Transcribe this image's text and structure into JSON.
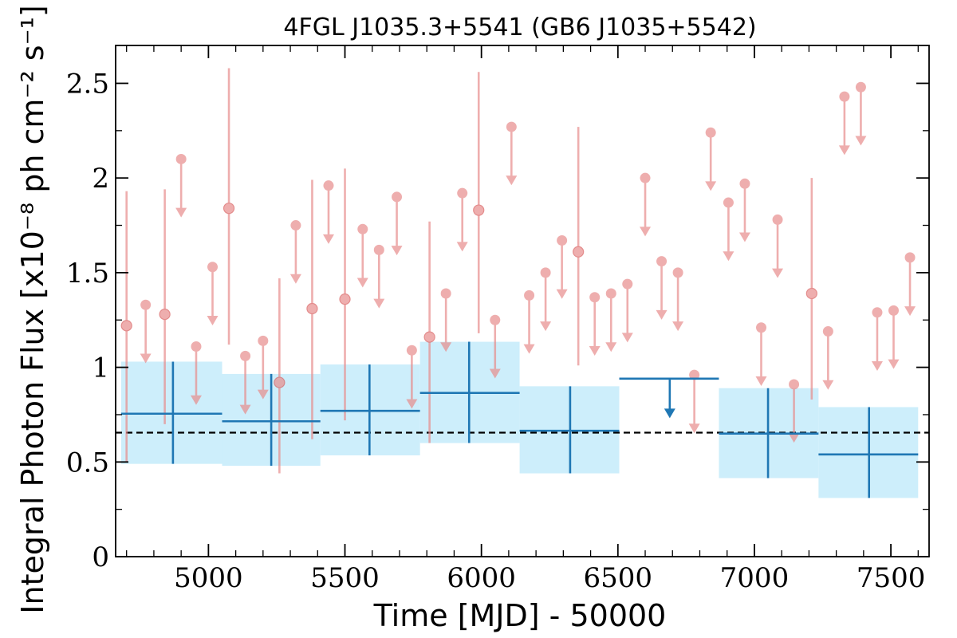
{
  "chart_data": {
    "type": "scatter",
    "title": "4FGL J1035.3+5541 (GB6 J1035+5542)",
    "xlabel": "Time [MJD] - 50000",
    "ylabel": "Integral Photon Flux [x10⁻⁸ ph cm⁻² s⁻¹]",
    "xlim": [
      4660,
      7640
    ],
    "ylim": [
      0,
      2.7
    ],
    "x_ticks": [
      5000,
      5500,
      6000,
      6500,
      7000,
      7500
    ],
    "x_tick_labels": [
      "5000",
      "5500",
      "6000",
      "6500",
      "7000",
      "7500"
    ],
    "y_ticks": [
      0,
      0.5,
      1,
      1.5,
      2,
      2.5
    ],
    "y_tick_labels": [
      "0",
      "0.5",
      "1",
      "1.5",
      "2",
      "2.5"
    ],
    "reference_line": {
      "y": 0.655,
      "style": "dashed",
      "color": "#000000"
    },
    "colors": {
      "monthly": "#e88c8c",
      "yearly": "#1f77b4",
      "yearly_band": "#cdeefb"
    },
    "series": [
      {
        "kind": "monthly",
        "detections": [
          {
            "x": 4700,
            "y": 1.22,
            "lo": 0.5,
            "hi": 1.93
          },
          {
            "x": 4840,
            "y": 1.28,
            "lo": 0.7,
            "hi": 1.94
          },
          {
            "x": 5075,
            "y": 1.84,
            "lo": 1.12,
            "hi": 2.58
          },
          {
            "x": 5260,
            "y": 0.92,
            "lo": 0.44,
            "hi": 1.47
          },
          {
            "x": 5380,
            "y": 1.31,
            "lo": 0.62,
            "hi": 1.99
          },
          {
            "x": 5500,
            "y": 1.36,
            "lo": 0.72,
            "hi": 2.05
          },
          {
            "x": 5810,
            "y": 1.16,
            "lo": 0.6,
            "hi": 1.77
          },
          {
            "x": 5990,
            "y": 1.83,
            "lo": 1.18,
            "hi": 2.56
          },
          {
            "x": 6355,
            "y": 1.61,
            "lo": 1.01,
            "hi": 2.27
          },
          {
            "x": 7210,
            "y": 1.39,
            "lo": 0.83,
            "hi": 2.0
          }
        ],
        "upper_limits": [
          {
            "x": 4770,
            "y": 1.33
          },
          {
            "x": 4900,
            "y": 2.1
          },
          {
            "x": 4955,
            "y": 1.11
          },
          {
            "x": 5015,
            "y": 1.53
          },
          {
            "x": 5135,
            "y": 1.06
          },
          {
            "x": 5200,
            "y": 1.14
          },
          {
            "x": 5320,
            "y": 1.75
          },
          {
            "x": 5440,
            "y": 1.96
          },
          {
            "x": 5565,
            "y": 1.73
          },
          {
            "x": 5625,
            "y": 1.62
          },
          {
            "x": 5690,
            "y": 1.9
          },
          {
            "x": 5745,
            "y": 1.09
          },
          {
            "x": 5870,
            "y": 1.39
          },
          {
            "x": 5930,
            "y": 1.92
          },
          {
            "x": 6050,
            "y": 1.25
          },
          {
            "x": 6110,
            "y": 2.27
          },
          {
            "x": 6175,
            "y": 1.38
          },
          {
            "x": 6235,
            "y": 1.5
          },
          {
            "x": 6295,
            "y": 1.67
          },
          {
            "x": 6415,
            "y": 1.37
          },
          {
            "x": 6475,
            "y": 1.39
          },
          {
            "x": 6535,
            "y": 1.44
          },
          {
            "x": 6600,
            "y": 2.0
          },
          {
            "x": 6660,
            "y": 1.56
          },
          {
            "x": 6720,
            "y": 1.5
          },
          {
            "x": 6780,
            "y": 0.96
          },
          {
            "x": 6840,
            "y": 2.24
          },
          {
            "x": 6905,
            "y": 1.87
          },
          {
            "x": 6965,
            "y": 1.97
          },
          {
            "x": 7025,
            "y": 1.21
          },
          {
            "x": 7085,
            "y": 1.78
          },
          {
            "x": 7145,
            "y": 0.91
          },
          {
            "x": 7270,
            "y": 1.19
          },
          {
            "x": 7330,
            "y": 2.43
          },
          {
            "x": 7390,
            "y": 2.48
          },
          {
            "x": 7450,
            "y": 1.29
          },
          {
            "x": 7510,
            "y": 1.3
          },
          {
            "x": 7570,
            "y": 1.58
          }
        ]
      },
      {
        "kind": "yearly",
        "detections": [
          {
            "x": 4870,
            "x0": 4680,
            "x1": 5050,
            "y": 0.755,
            "lo": 0.49,
            "hi": 1.03
          },
          {
            "x": 5230,
            "x0": 5050,
            "x1": 5410,
            "y": 0.715,
            "lo": 0.48,
            "hi": 0.965
          },
          {
            "x": 5590,
            "x0": 5410,
            "x1": 5775,
            "y": 0.77,
            "lo": 0.535,
            "hi": 1.015
          },
          {
            "x": 5955,
            "x0": 5775,
            "x1": 6140,
            "y": 0.865,
            "lo": 0.6,
            "hi": 1.135
          },
          {
            "x": 6325,
            "x0": 6140,
            "x1": 6505,
            "y": 0.665,
            "lo": 0.44,
            "hi": 0.9
          },
          {
            "x": 7050,
            "x0": 6870,
            "x1": 7235,
            "y": 0.65,
            "lo": 0.415,
            "hi": 0.89
          },
          {
            "x": 7420,
            "x0": 7235,
            "x1": 7600,
            "y": 0.54,
            "lo": 0.31,
            "hi": 0.79
          }
        ],
        "upper_limits": [
          {
            "x": 6690,
            "x0": 6505,
            "x1": 6870,
            "y": 0.94
          }
        ]
      }
    ]
  }
}
